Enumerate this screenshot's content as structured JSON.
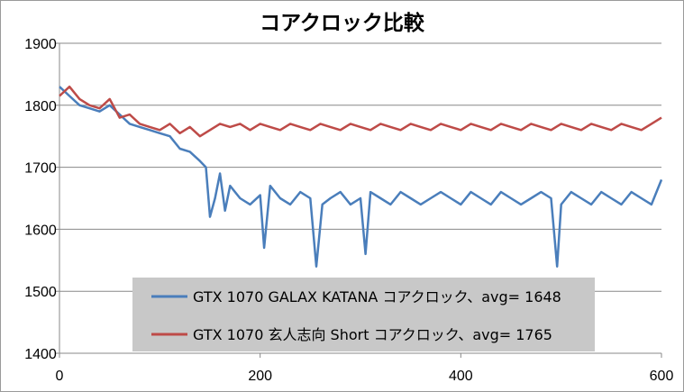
{
  "chart_data": {
    "type": "line",
    "title": "コアクロック比較",
    "xlabel": "",
    "ylabel": "",
    "xlim": [
      0,
      600
    ],
    "ylim": [
      1400,
      1900
    ],
    "x_ticks": [
      0,
      200,
      400,
      600
    ],
    "y_ticks": [
      1400,
      1500,
      1600,
      1700,
      1800,
      1900
    ],
    "grid": "horizontal",
    "legend_position": "bottom-center",
    "series": [
      {
        "name": "GTX 1070 GALAX KATANA コアクロック、avg= 1648",
        "color": "#4a7ebb",
        "x": [
          0,
          10,
          20,
          30,
          40,
          50,
          60,
          70,
          80,
          90,
          100,
          110,
          120,
          130,
          140,
          146,
          150,
          155,
          160,
          165,
          170,
          180,
          190,
          200,
          204,
          210,
          220,
          230,
          240,
          250,
          256,
          262,
          270,
          280,
          290,
          300,
          305,
          310,
          320,
          330,
          340,
          350,
          360,
          370,
          380,
          390,
          400,
          410,
          420,
          430,
          440,
          450,
          460,
          470,
          480,
          490,
          496,
          500,
          510,
          520,
          530,
          540,
          550,
          560,
          570,
          580,
          590,
          600
        ],
        "y": [
          1830,
          1815,
          1800,
          1795,
          1790,
          1800,
          1785,
          1770,
          1765,
          1760,
          1755,
          1750,
          1730,
          1725,
          1710,
          1700,
          1620,
          1650,
          1690,
          1630,
          1670,
          1650,
          1640,
          1655,
          1570,
          1670,
          1650,
          1640,
          1660,
          1650,
          1540,
          1640,
          1650,
          1660,
          1640,
          1650,
          1560,
          1660,
          1650,
          1640,
          1660,
          1650,
          1640,
          1650,
          1660,
          1650,
          1640,
          1660,
          1650,
          1640,
          1660,
          1650,
          1640,
          1650,
          1660,
          1650,
          1540,
          1640,
          1660,
          1650,
          1640,
          1660,
          1650,
          1640,
          1660,
          1650,
          1640,
          1680
        ]
      },
      {
        "name": "GTX 1070 玄人志向 Short コアクロック、avg= 1765",
        "color": "#be4b48",
        "x": [
          0,
          10,
          20,
          30,
          40,
          50,
          60,
          70,
          80,
          90,
          100,
          110,
          120,
          130,
          140,
          150,
          160,
          170,
          180,
          190,
          200,
          210,
          220,
          230,
          240,
          250,
          260,
          270,
          280,
          290,
          300,
          310,
          320,
          330,
          340,
          350,
          360,
          370,
          380,
          390,
          400,
          410,
          420,
          430,
          440,
          450,
          460,
          470,
          480,
          490,
          500,
          510,
          520,
          530,
          540,
          550,
          560,
          570,
          580,
          590,
          600
        ],
        "y": [
          1815,
          1830,
          1810,
          1800,
          1795,
          1810,
          1780,
          1785,
          1770,
          1765,
          1760,
          1770,
          1755,
          1765,
          1750,
          1760,
          1770,
          1765,
          1770,
          1760,
          1770,
          1765,
          1760,
          1770,
          1765,
          1760,
          1770,
          1765,
          1760,
          1770,
          1765,
          1760,
          1770,
          1765,
          1760,
          1770,
          1765,
          1760,
          1770,
          1765,
          1760,
          1770,
          1765,
          1760,
          1770,
          1765,
          1760,
          1770,
          1765,
          1760,
          1770,
          1765,
          1760,
          1770,
          1765,
          1760,
          1770,
          1765,
          1760,
          1770,
          1780
        ]
      }
    ]
  }
}
